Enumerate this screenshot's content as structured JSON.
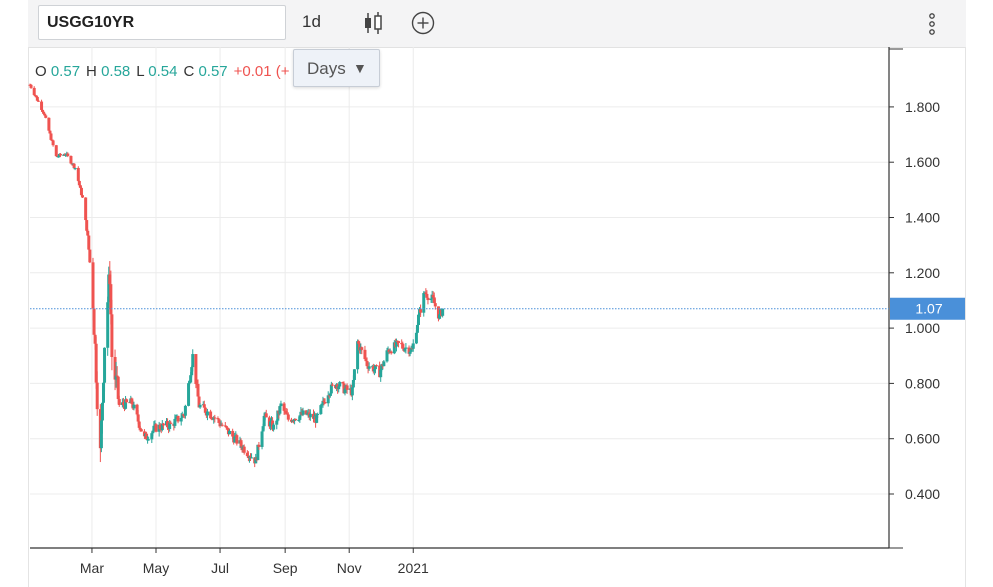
{
  "toolbar": {
    "symbol": "USGG10YR",
    "interval": "1d"
  },
  "ohlc": {
    "o_label": "O",
    "o": "0.57",
    "h_label": "H",
    "h": "0.58",
    "l_label": "L",
    "l": "0.54",
    "c_label": "C",
    "c": "0.57",
    "change": "+0.01 (+"
  },
  "days_dropdown": {
    "label": "Days",
    "caret": "▼"
  },
  "colors": {
    "up": "#26a69a",
    "down": "#ef5350",
    "last_price_tag": "#4a90d9",
    "grid": "#ececec"
  },
  "chart_data": {
    "type": "candlestick",
    "title": "",
    "x_range": [
      "2020-01-02",
      "2021-01-29"
    ],
    "y_range": [
      0.2,
      1.99
    ],
    "y_ticks": [
      0.4,
      0.6,
      0.8,
      1.0,
      1.2,
      1.4,
      1.6,
      1.8
    ],
    "y_tick_labels": [
      "0.400",
      "0.600",
      "0.800",
      "1.000",
      "1.200",
      "1.400",
      "1.600",
      "1.800"
    ],
    "x_ticks": [
      {
        "date": "2020-03-01",
        "label": "Mar"
      },
      {
        "date": "2020-05-01",
        "label": "May"
      },
      {
        "date": "2020-07-01",
        "label": "Jul"
      },
      {
        "date": "2020-09-01",
        "label": "Sep"
      },
      {
        "date": "2020-11-01",
        "label": "Nov"
      },
      {
        "date": "2021-01-01",
        "label": "2021"
      }
    ],
    "last_price": 1.07,
    "last_price_label": "1.07",
    "close_trajectory": [
      [
        "2020-01-02",
        1.88
      ],
      [
        "2020-01-15",
        1.78
      ],
      [
        "2020-01-27",
        1.62
      ],
      [
        "2020-02-05",
        1.63
      ],
      [
        "2020-02-14",
        1.58
      ],
      [
        "2020-02-21",
        1.47
      ],
      [
        "2020-02-26",
        1.33
      ],
      [
        "2020-03-02",
        1.1
      ],
      [
        "2020-03-06",
        0.76
      ],
      [
        "2020-03-09",
        0.54
      ],
      [
        "2020-03-13",
        0.95
      ],
      [
        "2020-03-18",
        1.2
      ],
      [
        "2020-03-20",
        0.9
      ],
      [
        "2020-03-27",
        0.72
      ],
      [
        "2020-04-08",
        0.73
      ],
      [
        "2020-04-20",
        0.6
      ],
      [
        "2020-05-01",
        0.64
      ],
      [
        "2020-05-15",
        0.65
      ],
      [
        "2020-05-28",
        0.69
      ],
      [
        "2020-06-05",
        0.9
      ],
      [
        "2020-06-11",
        0.72
      ],
      [
        "2020-06-25",
        0.68
      ],
      [
        "2020-07-10",
        0.62
      ],
      [
        "2020-07-30",
        0.54
      ],
      [
        "2020-08-04",
        0.52
      ],
      [
        "2020-08-12",
        0.68
      ],
      [
        "2020-08-21",
        0.64
      ],
      [
        "2020-08-28",
        0.72
      ],
      [
        "2020-09-04",
        0.67
      ],
      [
        "2020-09-20",
        0.69
      ],
      [
        "2020-10-01",
        0.67
      ],
      [
        "2020-10-12",
        0.77
      ],
      [
        "2020-10-20",
        0.8
      ],
      [
        "2020-10-27",
        0.78
      ],
      [
        "2020-11-04",
        0.77
      ],
      [
        "2020-11-09",
        0.95
      ],
      [
        "2020-11-18",
        0.87
      ],
      [
        "2020-11-30",
        0.84
      ],
      [
        "2020-12-08",
        0.92
      ],
      [
        "2020-12-18",
        0.94
      ],
      [
        "2020-12-31",
        0.92
      ],
      [
        "2021-01-06",
        1.04
      ],
      [
        "2021-01-12",
        1.13
      ],
      [
        "2021-01-20",
        1.1
      ],
      [
        "2021-01-26",
        1.04
      ],
      [
        "2021-01-29",
        1.07
      ]
    ]
  }
}
